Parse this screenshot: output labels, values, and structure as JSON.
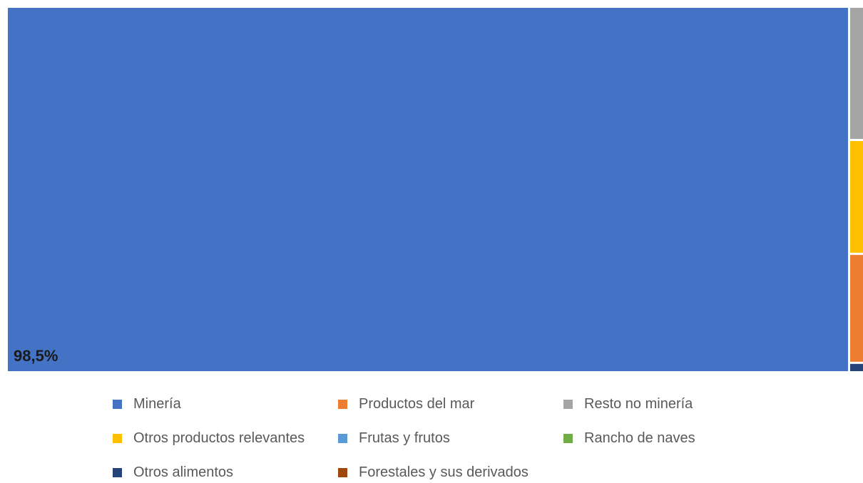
{
  "chart_data": {
    "type": "treemap",
    "title": "",
    "series": [
      {
        "name": "Minería",
        "value": 98.5,
        "color": "#4472C4",
        "label": "98,5%"
      },
      {
        "name": "Resto no minería",
        "value": 0.55,
        "color": "#A5A5A5",
        "label": ""
      },
      {
        "name": "Otros productos relevantes",
        "value": 0.47,
        "color": "#FFC000",
        "label": ""
      },
      {
        "name": "Productos del mar",
        "value": 0.45,
        "color": "#ED7D31",
        "label": ""
      },
      {
        "name": "Otros alimentos",
        "value": 0.03,
        "color": "#264478",
        "label": ""
      }
    ],
    "legend": {
      "position": "bottom",
      "entries": [
        {
          "name": "Minería",
          "color": "#4472C4"
        },
        {
          "name": "Productos del mar",
          "color": "#ED7D31"
        },
        {
          "name": "Resto no minería",
          "color": "#A5A5A5"
        },
        {
          "name": "Otros productos relevantes",
          "color": "#FFC000"
        },
        {
          "name": "Frutas y frutos",
          "color": "#5B9BD5"
        },
        {
          "name": "Rancho de naves",
          "color": "#70AD47"
        },
        {
          "name": "Otros alimentos",
          "color": "#264478"
        },
        {
          "name": "Forestales y sus derivados",
          "color": "#9E480E"
        }
      ]
    }
  }
}
